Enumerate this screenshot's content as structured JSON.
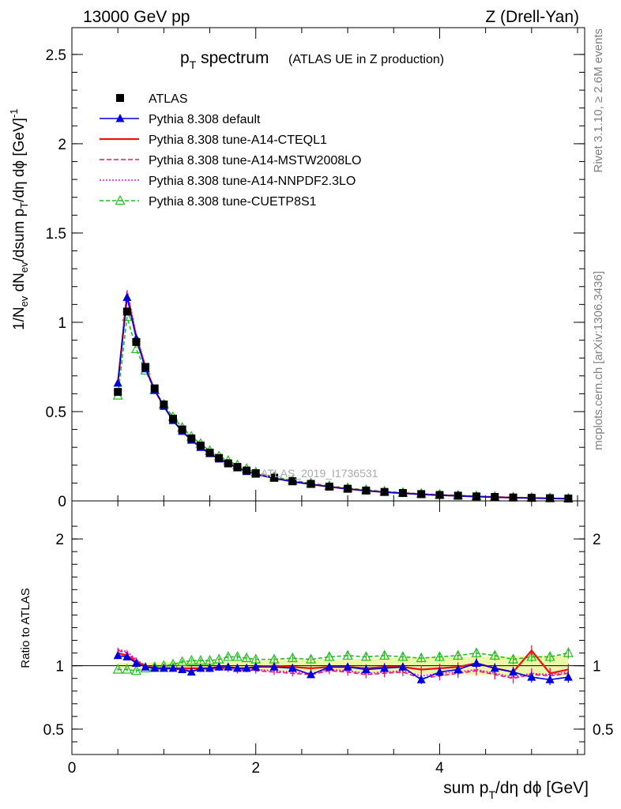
{
  "header": {
    "energy_label": "13000 GeV pp",
    "process_label": "Z (Drell-Yan)"
  },
  "side_labels": {
    "rivet": "Rivet 3.1.10, ≥ 2.6M events",
    "mcplots": "mcplots.cern.ch [arXiv:1306.3436]"
  },
  "chart_data": [
    {
      "type": "line",
      "title": "p_T spectrum",
      "title_parts": {
        "p": "p",
        "sub": "T",
        "rest": " spectrum",
        "note": "(ATLAS UE in Z production)"
      },
      "watermark": "ATLAS_2019_I1736531",
      "ylabel": "1/N_ev dN_ev/dsum p_T/dη dϕ [GeV]^-1",
      "xlabel": "",
      "xlim": [
        0,
        5.5
      ],
      "ylim": [
        0,
        2.65
      ],
      "yticks": [
        0,
        0.5,
        1,
        1.5,
        2,
        2.5
      ],
      "x": [
        0.5,
        0.6,
        0.7,
        0.8,
        0.9,
        1.0,
        1.1,
        1.2,
        1.3,
        1.4,
        1.5,
        1.6,
        1.7,
        1.8,
        1.9,
        2.0,
        2.2,
        2.4,
        2.6,
        2.8,
        3.0,
        3.2,
        3.4,
        3.6,
        3.8,
        4.0,
        4.2,
        4.4,
        4.6,
        4.8,
        5.0,
        5.2,
        5.4
      ],
      "series": [
        {
          "name": "ATLAS",
          "color": "#000000",
          "marker": "square",
          "values": [
            0.61,
            1.06,
            0.89,
            0.75,
            0.63,
            0.54,
            0.46,
            0.4,
            0.35,
            0.31,
            0.27,
            0.24,
            0.21,
            0.19,
            0.17,
            0.155,
            0.13,
            0.11,
            0.095,
            0.08,
            0.068,
            0.058,
            0.05,
            0.044,
            0.038,
            0.033,
            0.029,
            0.025,
            0.022,
            0.019,
            0.017,
            0.015,
            0.013
          ]
        },
        {
          "name": "Pythia 8.308 default",
          "color": "#0000dd",
          "marker": "triangle",
          "dash": "",
          "values": [
            0.66,
            1.14,
            0.91,
            0.74,
            0.62,
            0.53,
            0.45,
            0.39,
            0.34,
            0.3,
            0.265,
            0.235,
            0.21,
            0.185,
            0.165,
            0.15,
            0.127,
            0.108,
            0.093,
            0.079,
            0.067,
            0.057,
            0.049,
            0.043,
            0.036,
            0.032,
            0.028,
            0.024,
            0.021,
            0.018,
            0.016,
            0.014,
            0.012
          ]
        },
        {
          "name": "Pythia 8.308 tune-A14-CTEQL1",
          "color": "#ee1111",
          "marker": "none",
          "dash": "",
          "values": [
            0.66,
            1.15,
            0.92,
            0.75,
            0.62,
            0.53,
            0.45,
            0.39,
            0.34,
            0.3,
            0.265,
            0.235,
            0.21,
            0.185,
            0.165,
            0.15,
            0.127,
            0.108,
            0.093,
            0.079,
            0.067,
            0.057,
            0.049,
            0.043,
            0.037,
            0.032,
            0.028,
            0.024,
            0.021,
            0.018,
            0.016,
            0.014,
            0.012
          ]
        },
        {
          "name": "Pythia 8.308 tune-A14-MSTW2008LO",
          "color": "#ee1177",
          "marker": "none",
          "dash": "6,3",
          "values": [
            0.67,
            1.17,
            0.92,
            0.75,
            0.62,
            0.53,
            0.45,
            0.39,
            0.34,
            0.3,
            0.265,
            0.235,
            0.21,
            0.185,
            0.165,
            0.15,
            0.127,
            0.108,
            0.093,
            0.079,
            0.067,
            0.057,
            0.049,
            0.043,
            0.037,
            0.032,
            0.028,
            0.024,
            0.021,
            0.018,
            0.016,
            0.014,
            0.012
          ]
        },
        {
          "name": "Pythia 8.308 tune-A14-NNPDF2.3LO",
          "color": "#ee11cc",
          "marker": "none",
          "dash": "2,2",
          "values": [
            0.67,
            1.18,
            0.93,
            0.75,
            0.62,
            0.53,
            0.45,
            0.39,
            0.34,
            0.3,
            0.265,
            0.235,
            0.21,
            0.185,
            0.165,
            0.15,
            0.127,
            0.108,
            0.093,
            0.079,
            0.067,
            0.057,
            0.049,
            0.043,
            0.037,
            0.032,
            0.028,
            0.024,
            0.021,
            0.018,
            0.016,
            0.014,
            0.012
          ]
        },
        {
          "name": "Pythia 8.308 tune-CUETP8S1",
          "color": "#22bb22",
          "marker": "triangle-open",
          "dash": "5,3",
          "values": [
            0.59,
            1.03,
            0.85,
            0.73,
            0.62,
            0.54,
            0.47,
            0.41,
            0.36,
            0.32,
            0.28,
            0.25,
            0.225,
            0.2,
            0.18,
            0.16,
            0.135,
            0.115,
            0.099,
            0.084,
            0.072,
            0.062,
            0.053,
            0.046,
            0.04,
            0.035,
            0.031,
            0.027,
            0.023,
            0.02,
            0.018,
            0.016,
            0.014
          ]
        }
      ]
    },
    {
      "type": "line",
      "ylabel": "Ratio to ATLAS",
      "xlabel": "sum p_T/dη dϕ [GeV]",
      "xlabel_parts": {
        "pre": "sum p",
        "sub": "T",
        "post": "/dη dϕ [GeV]"
      },
      "xlim": [
        0,
        5.5
      ],
      "ylim": [
        0.3,
        2.3
      ],
      "yticks": [
        0.5,
        1,
        2
      ],
      "xticks": [
        0,
        2,
        4
      ],
      "x": [
        0.5,
        0.6,
        0.7,
        0.8,
        0.9,
        1.0,
        1.1,
        1.2,
        1.3,
        1.4,
        1.5,
        1.6,
        1.7,
        1.8,
        1.9,
        2.0,
        2.2,
        2.4,
        2.6,
        2.8,
        3.0,
        3.2,
        3.4,
        3.6,
        3.8,
        4.0,
        4.2,
        4.4,
        4.6,
        4.8,
        5.0,
        5.2,
        5.4
      ],
      "series": [
        {
          "name": "Pythia 8.308 default",
          "color": "#0000dd",
          "marker": "triangle",
          "dash": "",
          "values": [
            1.08,
            1.07,
            1.02,
            0.99,
            0.98,
            0.98,
            0.98,
            0.97,
            0.95,
            0.98,
            0.98,
            0.99,
            0.99,
            0.98,
            0.98,
            0.99,
            0.99,
            0.98,
            0.93,
            0.99,
            0.99,
            0.97,
            0.98,
            0.99,
            0.89,
            0.95,
            0.97,
            1.02,
            0.98,
            0.95,
            0.91,
            0.89,
            0.91
          ]
        },
        {
          "name": "Pythia 8.308 tune-A14-CTEQL1",
          "color": "#ee1111",
          "marker": "none",
          "dash": "",
          "values": [
            1.1,
            1.08,
            1.03,
            1.0,
            0.98,
            0.98,
            0.98,
            0.98,
            0.98,
            0.98,
            0.98,
            0.99,
            0.99,
            0.98,
            0.98,
            0.99,
            1.0,
            0.99,
            0.98,
            0.99,
            0.99,
            0.98,
            0.99,
            0.99,
            0.97,
            0.98,
            0.99,
            1.02,
            0.98,
            0.95,
            1.12,
            0.94,
            0.97
          ]
        },
        {
          "name": "Pythia 8.308 tune-A14-MSTW2008LO",
          "color": "#ee1177",
          "marker": "none",
          "dash": "6,3",
          "values": [
            1.12,
            1.1,
            1.04,
            1.0,
            0.98,
            0.98,
            0.97,
            0.97,
            0.96,
            0.97,
            0.97,
            0.98,
            0.97,
            0.96,
            0.97,
            0.96,
            0.95,
            0.94,
            0.93,
            0.96,
            0.95,
            0.93,
            0.94,
            0.95,
            0.9,
            0.92,
            0.94,
            0.96,
            0.93,
            0.9,
            0.93,
            0.92,
            0.94
          ]
        },
        {
          "name": "Pythia 8.308 tune-A14-NNPDF2.3LO",
          "color": "#ee11cc",
          "marker": "none",
          "dash": "2,2",
          "values": [
            1.13,
            1.11,
            1.05,
            1.0,
            0.98,
            0.98,
            0.97,
            0.97,
            0.96,
            0.97,
            0.98,
            0.98,
            0.98,
            0.97,
            0.97,
            0.97,
            0.96,
            0.95,
            0.94,
            0.97,
            0.96,
            0.94,
            0.95,
            0.96,
            0.92,
            0.94,
            0.95,
            0.97,
            0.94,
            0.91,
            0.94,
            0.93,
            0.95
          ]
        },
        {
          "name": "Pythia 8.308 tune-CUETP8S1",
          "color": "#22bb22",
          "marker": "triangle-open",
          "dash": "5,3",
          "values": [
            0.97,
            0.97,
            0.96,
            0.98,
            0.99,
            1.0,
            1.01,
            1.03,
            1.04,
            1.04,
            1.04,
            1.05,
            1.07,
            1.07,
            1.06,
            1.05,
            1.05,
            1.06,
            1.05,
            1.07,
            1.08,
            1.07,
            1.08,
            1.07,
            1.06,
            1.07,
            1.08,
            1.1,
            1.08,
            1.05,
            1.07,
            1.07,
            1.1
          ]
        }
      ]
    }
  ]
}
